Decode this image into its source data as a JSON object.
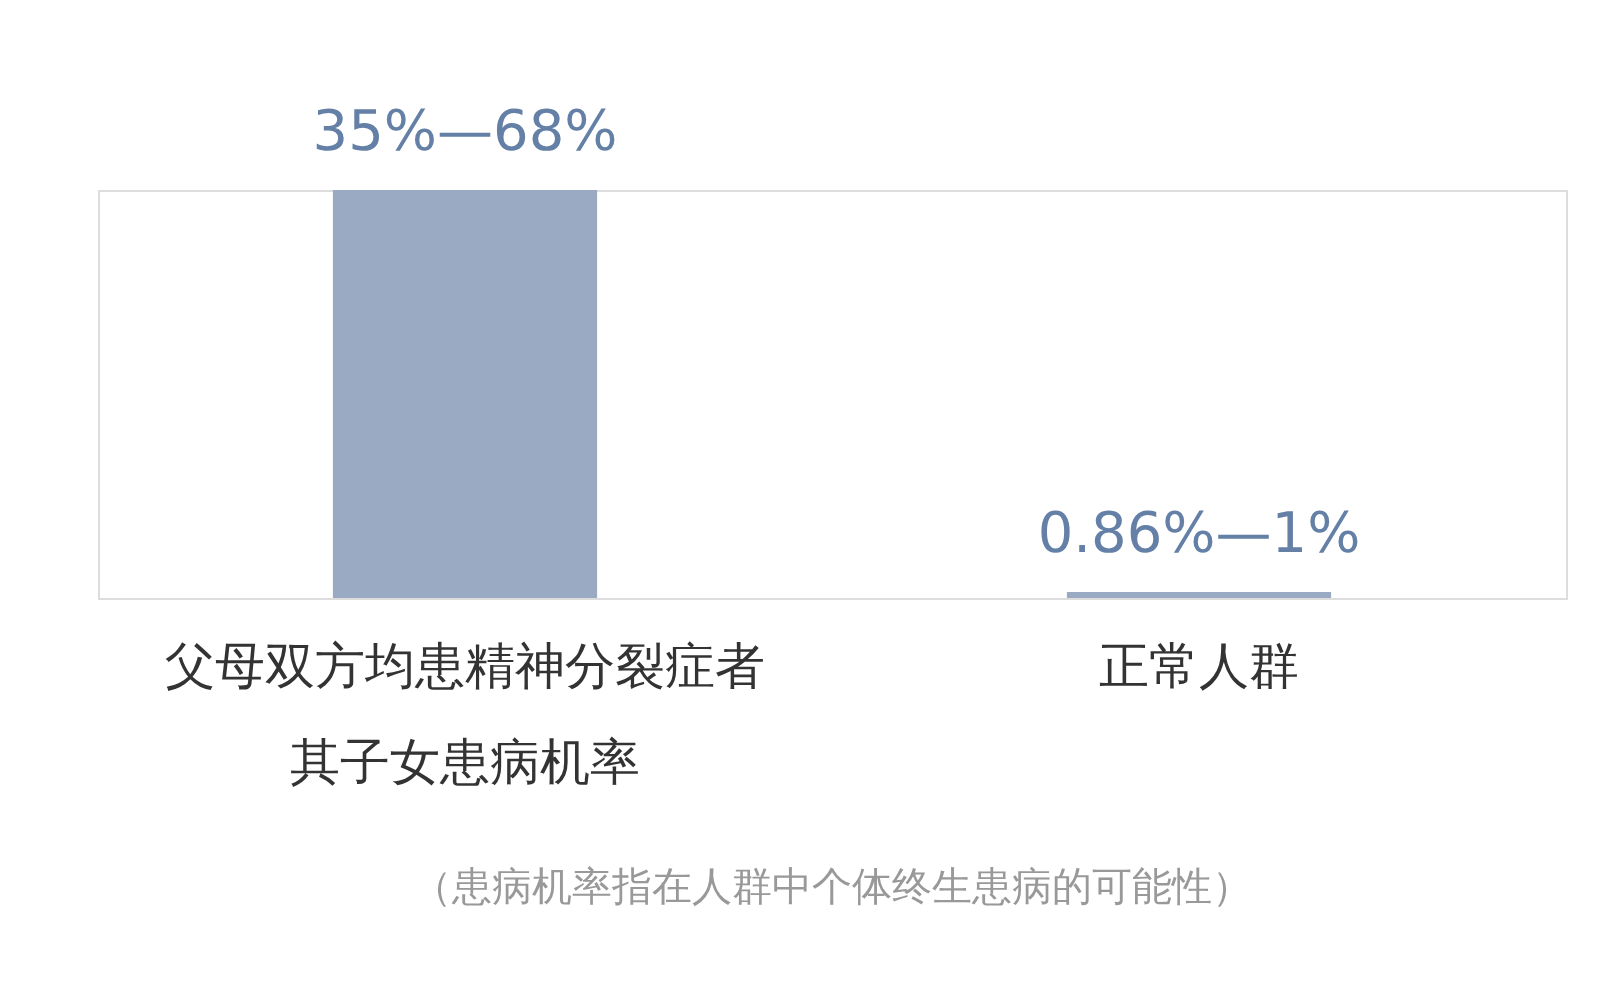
{
  "chart_data": {
    "type": "bar",
    "categories": [
      "父母双方均患精神分裂症者其子女患病机率",
      "正常人群"
    ],
    "values": [
      68,
      1
    ],
    "value_labels": [
      "35%—68%",
      "0.86%—1%"
    ],
    "color": "#9aaac2",
    "annotations": [
      "（患病机率指在人群中个体终生患病的可能性）"
    ]
  }
}
